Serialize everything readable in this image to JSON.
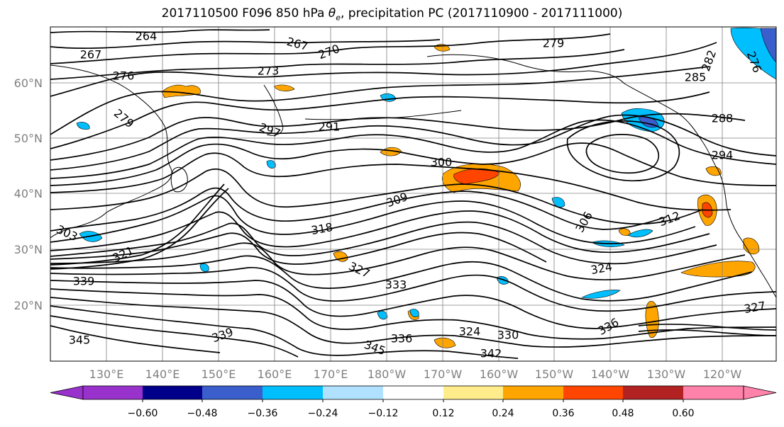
{
  "title": {
    "prefix": "2017110500 F096 850 hPa ",
    "theta_symbol": "θ",
    "theta_sub": "e",
    "suffix": ", precipitation PC (2017110900 - 2017111000)"
  },
  "lat_labels": [
    "60°N",
    "50°N",
    "40°N",
    "30°N",
    "20°N"
  ],
  "lon_labels": [
    "130°E",
    "140°E",
    "150°E",
    "160°E",
    "170°E",
    "180°W",
    "170°W",
    "160°W",
    "150°W",
    "140°W",
    "130°W",
    "120°W"
  ],
  "contour_labels": [
    "264",
    "267",
    "267",
    "270",
    "273",
    "276",
    "276",
    "279",
    "279",
    "282",
    "285",
    "288",
    "291",
    "294",
    "297",
    "300",
    "303",
    "306",
    "309",
    "312",
    "318",
    "321",
    "324",
    "324",
    "327",
    "327",
    "330",
    "333",
    "336",
    "336",
    "339",
    "339",
    "342",
    "345",
    "345"
  ],
  "colorbar": {
    "ticks": [
      "−0.60",
      "−0.48",
      "−0.36",
      "−0.24",
      "−0.12",
      "0.12",
      "0.24",
      "0.36",
      "0.48",
      "0.60"
    ],
    "colors": [
      "#9932cc",
      "#00008b",
      "#3a5fcd",
      "#00bfff",
      "#b0e2ff",
      "#ffffff",
      "#ffec8b",
      "#ffa500",
      "#ff4500",
      "#b22222",
      "#ff82ab"
    ]
  },
  "colors": {
    "contour": "#000000",
    "grid": "#808080",
    "coast": "#000000",
    "tick_label": "#808080"
  }
}
